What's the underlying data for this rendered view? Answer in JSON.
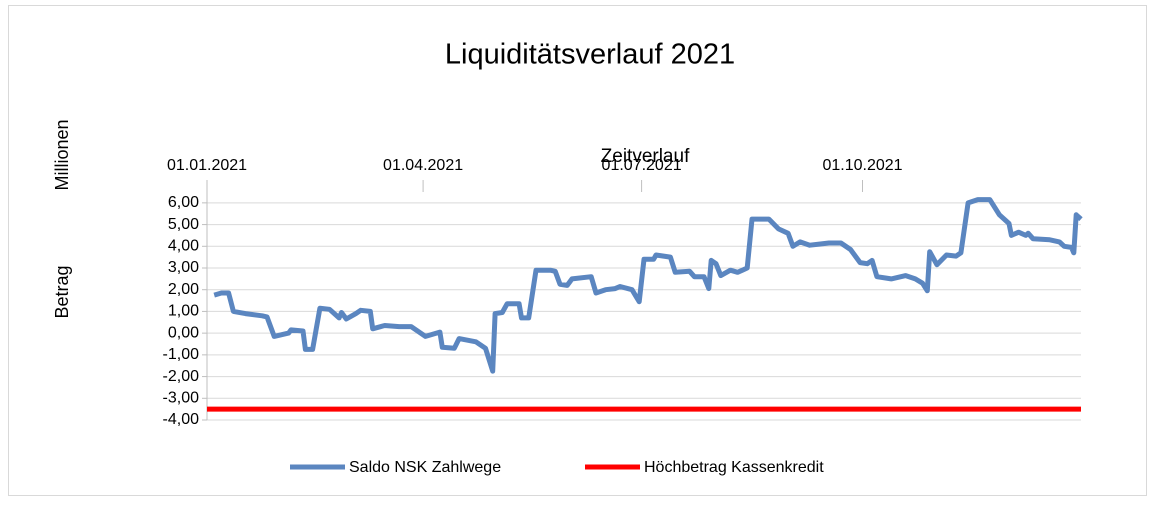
{
  "chart_data": {
    "type": "line",
    "title": "Liquiditätsverlauf 2021",
    "xlabel": "Zeitverlauf",
    "ylabel": [
      "Millionen",
      "Betrag"
    ],
    "xlim": [
      "2021-01-01",
      "2021-12-31"
    ],
    "xticks": [
      {
        "value": "2021-01-01",
        "label": "01.01.2021"
      },
      {
        "value": "2021-04-01",
        "label": "01.04.2021"
      },
      {
        "value": "2021-07-01",
        "label": "01.07.2021"
      },
      {
        "value": "2021-10-01",
        "label": "01.10.2021"
      }
    ],
    "ylim": [
      -4,
      6.5
    ],
    "yticks": [
      {
        "value": -4,
        "label": "-4,00"
      },
      {
        "value": -3,
        "label": "-3,00"
      },
      {
        "value": -2,
        "label": "-2,00"
      },
      {
        "value": -1,
        "label": "-1,00"
      },
      {
        "value": 0,
        "label": "0,00"
      },
      {
        "value": 1,
        "label": "1,00"
      },
      {
        "value": 2,
        "label": "2,00"
      },
      {
        "value": 3,
        "label": "3,00"
      },
      {
        "value": 4,
        "label": "4,00"
      },
      {
        "value": 5,
        "label": "5,00"
      },
      {
        "value": 6,
        "label": "6,00"
      }
    ],
    "grid": true,
    "legend": "bottom",
    "series": [
      {
        "name": "Saldo NSK Zahlwege",
        "color": "#5b86c0",
        "x": [
          "2021-01-04",
          "2021-01-07",
          "2021-01-10",
          "2021-01-12",
          "2021-01-17",
          "2021-01-24",
          "2021-01-26",
          "2021-01-29",
          "2021-02-04",
          "2021-02-05",
          "2021-02-10",
          "2021-02-11",
          "2021-02-14",
          "2021-02-17",
          "2021-02-21",
          "2021-02-25",
          "2021-02-26",
          "2021-02-28",
          "2021-03-04",
          "2021-03-06",
          "2021-03-10",
          "2021-03-11",
          "2021-03-16",
          "2021-03-22",
          "2021-03-27",
          "2021-04-02",
          "2021-04-08",
          "2021-04-09",
          "2021-04-14",
          "2021-04-16",
          "2021-04-23",
          "2021-04-27",
          "2021-04-30",
          "2021-05-01",
          "2021-05-04",
          "2021-05-06",
          "2021-05-11",
          "2021-05-12",
          "2021-05-15",
          "2021-05-18",
          "2021-05-24",
          "2021-05-26",
          "2021-05-28",
          "2021-05-31",
          "2021-06-02",
          "2021-06-10",
          "2021-06-12",
          "2021-06-16",
          "2021-06-20",
          "2021-06-22",
          "2021-06-27",
          "2021-06-30",
          "2021-07-02",
          "2021-07-06",
          "2021-07-07",
          "2021-07-13",
          "2021-07-15",
          "2021-07-21",
          "2021-07-23",
          "2021-07-27",
          "2021-07-29",
          "2021-07-30",
          "2021-08-01",
          "2021-08-03",
          "2021-08-07",
          "2021-08-10",
          "2021-08-12",
          "2021-08-14",
          "2021-08-16",
          "2021-08-23",
          "2021-08-27",
          "2021-08-31",
          "2021-09-02",
          "2021-09-05",
          "2021-09-09",
          "2021-09-13",
          "2021-09-17",
          "2021-09-22",
          "2021-09-26",
          "2021-09-30",
          "2021-10-03",
          "2021-10-05",
          "2021-10-07",
          "2021-10-13",
          "2021-10-19",
          "2021-10-23",
          "2021-10-26",
          "2021-10-28",
          "2021-10-29",
          "2021-11-01",
          "2021-11-05",
          "2021-11-09",
          "2021-11-11",
          "2021-11-14",
          "2021-11-18",
          "2021-11-23",
          "2021-11-27",
          "2021-12-01",
          "2021-12-02",
          "2021-12-05",
          "2021-12-08",
          "2021-12-09",
          "2021-12-11",
          "2021-12-18",
          "2021-12-22",
          "2021-12-24",
          "2021-12-27",
          "2021-12-28",
          "2021-12-29",
          "2021-12-31"
        ],
        "values": [
          1.75,
          1.85,
          1.85,
          1.0,
          0.9,
          0.8,
          0.75,
          -0.15,
          0.0,
          0.15,
          0.1,
          -0.75,
          -0.75,
          1.15,
          1.1,
          0.7,
          0.95,
          0.65,
          0.9,
          1.05,
          1.0,
          0.2,
          0.35,
          0.3,
          0.3,
          -0.15,
          0.05,
          -0.65,
          -0.7,
          -0.25,
          -0.4,
          -0.7,
          -1.75,
          0.9,
          0.95,
          1.35,
          1.35,
          0.7,
          0.7,
          2.9,
          2.9,
          2.85,
          2.25,
          2.2,
          2.5,
          2.6,
          1.85,
          2.0,
          2.05,
          2.15,
          2.0,
          1.45,
          3.4,
          3.4,
          3.6,
          3.5,
          2.8,
          2.85,
          2.6,
          2.6,
          2.05,
          3.35,
          3.2,
          2.65,
          2.9,
          2.8,
          2.9,
          3.0,
          5.25,
          5.25,
          4.8,
          4.6,
          4.0,
          4.2,
          4.05,
          4.1,
          4.15,
          4.15,
          3.85,
          3.25,
          3.2,
          3.35,
          2.6,
          2.5,
          2.65,
          2.5,
          2.3,
          1.95,
          3.75,
          3.15,
          3.6,
          3.55,
          3.7,
          6.0,
          6.15,
          6.15,
          5.45,
          5.05,
          4.5,
          4.65,
          4.5,
          4.6,
          4.35,
          4.3,
          4.2,
          4.0,
          3.95,
          3.7,
          5.45,
          5.25
        ]
      },
      {
        "name": "Höchbetrag Kassenkredit",
        "color": "#ff0000",
        "x": [
          "2021-01-01",
          "2021-12-31"
        ],
        "values": [
          -3.5,
          -3.5
        ]
      }
    ]
  }
}
